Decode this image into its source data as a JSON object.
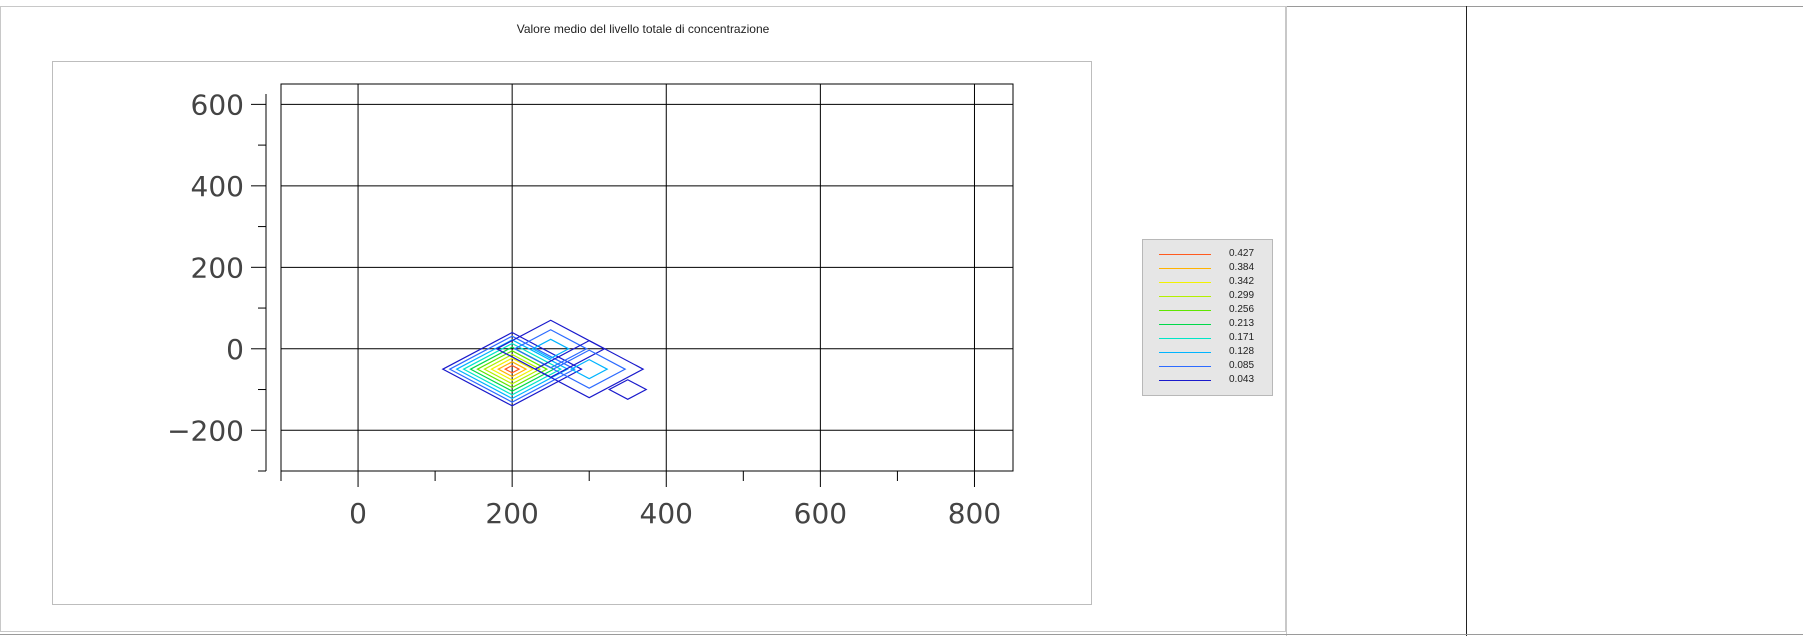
{
  "chart_data": {
    "type": "contour",
    "title": "Valore medio del livello totale di concentrazione",
    "xlabel": "",
    "ylabel": "",
    "xlim": [
      -100,
      850
    ],
    "ylim": [
      -300,
      650
    ],
    "xticks": [
      0,
      200,
      400,
      600,
      800
    ],
    "yticks": [
      600,
      400,
      200,
      0,
      -200
    ],
    "xtick_labels": [
      "0",
      "200",
      "400",
      "600",
      "800"
    ],
    "ytick_labels": [
      "600",
      "400",
      "200",
      "0",
      "−200"
    ],
    "grid": true,
    "legend_position": "right",
    "levels": [
      {
        "value": 0.427,
        "label": "0.427",
        "color": "#ff5a1f"
      },
      {
        "value": 0.384,
        "label": "0.384",
        "color": "#ffb300"
      },
      {
        "value": 0.342,
        "label": "0.342",
        "color": "#f2f200"
      },
      {
        "value": 0.299,
        "label": "0.299",
        "color": "#b4f000"
      },
      {
        "value": 0.256,
        "label": "0.256",
        "color": "#5fe600"
      },
      {
        "value": 0.213,
        "label": "0.213",
        "color": "#00d94a"
      },
      {
        "value": 0.171,
        "label": "0.171",
        "color": "#00e6c8"
      },
      {
        "value": 0.128,
        "label": "0.128",
        "color": "#00b4ff"
      },
      {
        "value": 0.085,
        "label": "0.085",
        "color": "#2d6bff"
      },
      {
        "value": 0.043,
        "label": "0.043",
        "color": "#1a1acc"
      }
    ],
    "sources": [
      {
        "x": 200,
        "y": -50,
        "levels": [
          0.427,
          0.384,
          0.342,
          0.299,
          0.256,
          0.213,
          0.171,
          0.128,
          0.085,
          0.043
        ],
        "radius": 90
      },
      {
        "x": 250,
        "y": 0,
        "levels": [
          0.128,
          0.085,
          0.043
        ],
        "radius": 70
      },
      {
        "x": 300,
        "y": -50,
        "levels": [
          0.128,
          0.085,
          0.043
        ],
        "radius": 70
      },
      {
        "x": 350,
        "y": -100,
        "levels": [
          0.043
        ],
        "radius": 24
      }
    ]
  }
}
